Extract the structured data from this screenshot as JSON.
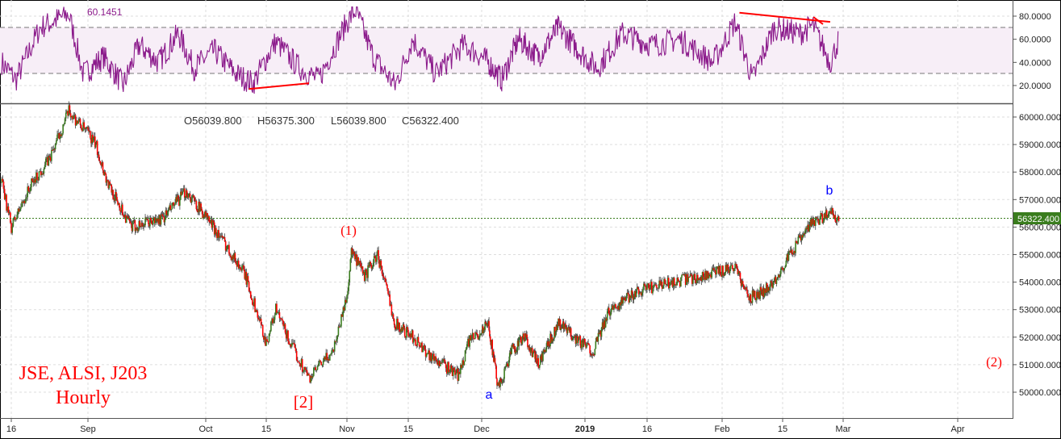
{
  "chart_data": [
    {
      "type": "line",
      "indicator": "RSI",
      "last_value_label": "60.1451",
      "ylim": [
        5,
        90
      ],
      "yticks": [
        "20.0000",
        "40.0000",
        "60.0000",
        "80.0000"
      ],
      "bands": [
        30,
        70
      ],
      "grid": true,
      "line_color": "#8b1a8b",
      "band_color": "#f7eef7",
      "series_approx": {
        "x": [
          "Aug 14",
          "Aug 17",
          "Aug 22",
          "Aug 28",
          "Aug 31",
          "Sep 5",
          "Sep 10",
          "Sep 14",
          "Sep 19",
          "Sep 24",
          "Sep 28",
          "Oct 3",
          "Oct 8",
          "Oct 12",
          "Oct 17",
          "Oct 22",
          "Oct 26",
          "Nov 1",
          "Nov 3",
          "Nov 7",
          "Nov 12",
          "Nov 16",
          "Nov 21",
          "Nov 27",
          "Dec 3",
          "Dec 7",
          "Dec 12",
          "Dec 18",
          "Dec 24",
          "Jan 4",
          "Jan 10",
          "Jan 17",
          "Jan 23",
          "Jan 30",
          "Feb 4",
          "Feb 8",
          "Feb 13",
          "Feb 19",
          "Feb 22",
          "Feb 26",
          "Feb 28"
        ],
        "y": [
          40,
          25,
          70,
          82,
          30,
          45,
          20,
          55,
          40,
          65,
          35,
          50,
          30,
          22,
          58,
          35,
          25,
          75,
          85,
          45,
          20,
          60,
          30,
          55,
          40,
          25,
          60,
          45,
          70,
          35,
          65,
          55,
          60,
          40,
          75,
          25,
          70,
          65,
          72,
          40,
          60
        ]
      },
      "annotations": [
        {
          "type": "trendline",
          "from": [
            "Oct 11",
            17
          ],
          "to": [
            "Oct 24",
            22
          ],
          "color": "#ff0000"
        },
        {
          "type": "trendline",
          "from": [
            "Feb 5",
            83
          ],
          "to": [
            "Feb 26",
            75
          ],
          "color": "#ff0000"
        }
      ]
    },
    {
      "type": "candlestick",
      "symbol_label": "JSE, ALSI, J203",
      "interval_label": "Hourly",
      "ohlc_label": {
        "o": "O56039.800",
        "h": "H56375.300",
        "l": "L56039.800",
        "c": "C56322.400"
      },
      "last_price": "56322.400",
      "ylim": [
        49200,
        60400
      ],
      "yticks": [
        "50000.000",
        "51000.000",
        "52000.000",
        "53000.000",
        "54000.000",
        "55000.000",
        "56000.000",
        "57000.000",
        "58000.000",
        "59000.000",
        "60000.000"
      ],
      "xticks": [
        "16",
        "Sep",
        "Oct",
        "15",
        "Nov",
        "15",
        "Dec",
        "2019",
        "16",
        "Feb",
        "15",
        "Mar",
        "Apr"
      ],
      "grid": true,
      "up_color": "#3a7d1e",
      "down_color": "#ff0000",
      "close_path_approx": {
        "x": [
          "Aug 14",
          "Aug 16",
          "Aug 20",
          "Aug 24",
          "Aug 28",
          "Sep 3",
          "Sep 6",
          "Sep 12",
          "Sep 20",
          "Sep 26",
          "Oct 1",
          "Oct 5",
          "Oct 10",
          "Oct 15",
          "Oct 17",
          "Oct 20",
          "Oct 24",
          "Oct 29",
          "Nov 1",
          "Nov 2",
          "Nov 5",
          "Nov 8",
          "Nov 12",
          "Nov 16",
          "Nov 20",
          "Nov 26",
          "Nov 28",
          "Dec 3",
          "Dec 6",
          "Dec 10",
          "Dec 14",
          "Dec 18",
          "Dec 24",
          "Jan 3",
          "Jan 7",
          "Jan 14",
          "Jan 22",
          "Jan 30",
          "Feb 4",
          "Feb 7",
          "Feb 12",
          "Feb 18",
          "Feb 22",
          "Feb 26",
          "Feb 28"
        ],
        "y": [
          57600,
          56000,
          57500,
          58500,
          60200,
          59000,
          57600,
          56000,
          56300,
          57300,
          56400,
          55500,
          54300,
          51800,
          53000,
          51800,
          50500,
          51500,
          53500,
          55100,
          54200,
          55000,
          52500,
          52000,
          51300,
          50600,
          51800,
          52500,
          50100,
          51500,
          52000,
          51000,
          52500,
          51500,
          53000,
          53700,
          54000,
          54300,
          54600,
          53400,
          53800,
          55300,
          56200,
          56500,
          56322
        ]
      },
      "wave_labels": [
        {
          "text": "(1)",
          "color": "#ff0000"
        },
        {
          "text": "[2]",
          "color": "#ff0000"
        },
        {
          "text": "a",
          "color": "#0000ff"
        },
        {
          "text": "b",
          "color": "#0000ff"
        },
        {
          "text": "(2)",
          "color": "#ff0000"
        }
      ]
    }
  ]
}
